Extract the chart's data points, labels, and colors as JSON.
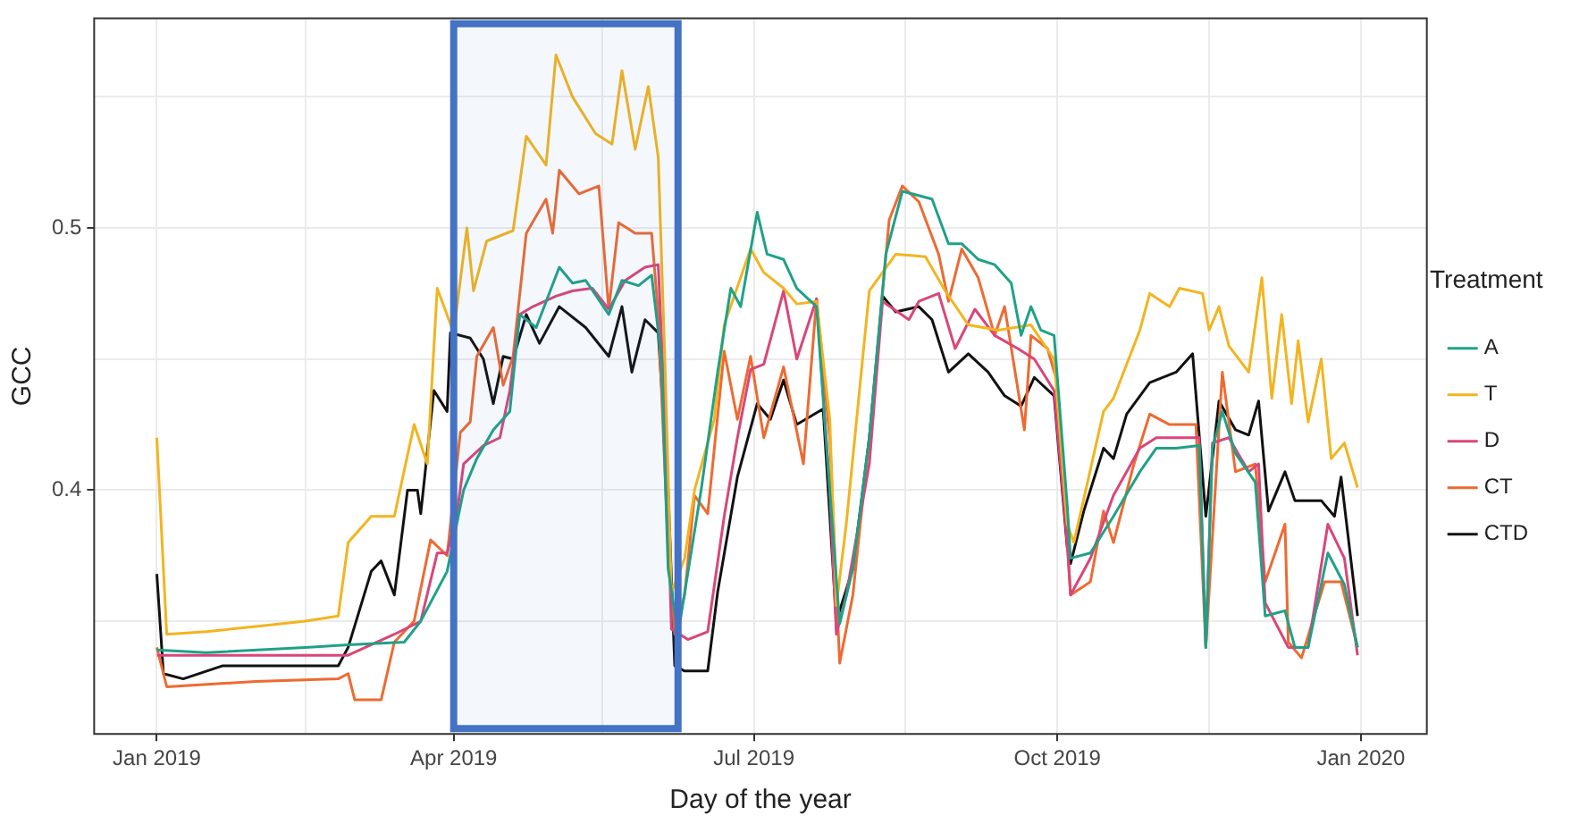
{
  "chart_data": {
    "type": "line",
    "xlabel": "Day of the year",
    "ylabel": "GCC",
    "legend_title": "Treatment",
    "legend": "right",
    "grid": true,
    "xlim": [
      "2018-12-13",
      "2020-01-21"
    ],
    "xticks": [
      {
        "value": "2019-01-01",
        "label": "Jan 2019"
      },
      {
        "value": "2019-02-15",
        "label": null
      },
      {
        "value": "2019-04-01",
        "label": "Apr 2019"
      },
      {
        "value": "2019-05-16",
        "label": null
      },
      {
        "value": "2019-07-01",
        "label": "Jul 2019"
      },
      {
        "value": "2019-08-16",
        "label": null
      },
      {
        "value": "2019-10-01",
        "label": "Oct 2019"
      },
      {
        "value": "2019-11-16",
        "label": null
      },
      {
        "value": "2020-01-01",
        "label": "Jan 2020"
      }
    ],
    "ylim": [
      0.307,
      0.58
    ],
    "yticks": [
      {
        "value": 0.35,
        "label": null
      },
      0.4,
      {
        "value": 0.45,
        "label": null
      },
      0.5,
      {
        "value": 0.55,
        "label": null
      }
    ],
    "bands": [
      {
        "axis": "x",
        "from": "2019-04-01",
        "to": "2019-06-08",
        "color": "#4472c4"
      }
    ],
    "series": [
      {
        "name": "A",
        "color": "#1fa187",
        "x": [
          "2019-01-01",
          "2019-01-16",
          "2019-02-15",
          "2019-02-28",
          "2019-03-17",
          "2019-03-22",
          "2019-03-30",
          "2019-04-04",
          "2019-04-08",
          "2019-04-13",
          "2019-04-18",
          "2019-04-21",
          "2019-04-26",
          "2019-05-03",
          "2019-05-07",
          "2019-05-11",
          "2019-05-18",
          "2019-05-22",
          "2019-05-27",
          "2019-05-31",
          "2019-06-03",
          "2019-06-05",
          "2019-06-08",
          "2019-06-15",
          "2019-06-20",
          "2019-06-24",
          "2019-06-27",
          "2019-07-02",
          "2019-07-05",
          "2019-07-10",
          "2019-07-14",
          "2019-07-20",
          "2019-07-24",
          "2019-07-27",
          "2019-07-31",
          "2019-08-05",
          "2019-08-10",
          "2019-08-15",
          "2019-08-24",
          "2019-08-29",
          "2019-09-02",
          "2019-09-07",
          "2019-09-12",
          "2019-09-17",
          "2019-09-20",
          "2019-09-23",
          "2019-09-26",
          "2019-09-30",
          "2019-10-04",
          "2019-10-05",
          "2019-10-11",
          "2019-10-18",
          "2019-10-26",
          "2019-10-31",
          "2019-11-06",
          "2019-11-13",
          "2019-11-15",
          "2019-11-17",
          "2019-11-20",
          "2019-11-24",
          "2019-11-30",
          "2019-12-03",
          "2019-12-09",
          "2019-12-12",
          "2019-12-16",
          "2019-12-22",
          "2019-12-27",
          "2019-12-31"
        ],
        "values": [
          0.339,
          0.338,
          0.34,
          0.341,
          0.342,
          0.35,
          0.369,
          0.4,
          0.412,
          0.423,
          0.43,
          0.467,
          0.462,
          0.485,
          0.479,
          0.48,
          0.467,
          0.48,
          0.478,
          0.482,
          0.45,
          0.37,
          0.345,
          0.4,
          0.445,
          0.477,
          0.47,
          0.506,
          0.49,
          0.488,
          0.477,
          0.47,
          0.4,
          0.349,
          0.37,
          0.42,
          0.49,
          0.514,
          0.511,
          0.494,
          0.494,
          0.488,
          0.486,
          0.479,
          0.459,
          0.47,
          0.461,
          0.459,
          0.394,
          0.374,
          0.376,
          0.39,
          0.407,
          0.416,
          0.416,
          0.417,
          0.34,
          0.416,
          0.43,
          0.414,
          0.403,
          0.352,
          0.354,
          0.34,
          0.34,
          0.376,
          0.364,
          0.34
        ]
      },
      {
        "name": "T",
        "color": "#f2b420",
        "x": [
          "2019-01-01",
          "2019-01-04",
          "2019-01-16",
          "2019-01-31",
          "2019-02-15",
          "2019-02-25",
          "2019-02-28",
          "2019-03-07",
          "2019-03-14",
          "2019-03-20",
          "2019-03-24",
          "2019-03-27",
          "2019-04-01",
          "2019-04-05",
          "2019-04-07",
          "2019-04-11",
          "2019-04-19",
          "2019-04-23",
          "2019-04-29",
          "2019-05-02",
          "2019-05-07",
          "2019-05-14",
          "2019-05-19",
          "2019-05-22",
          "2019-05-26",
          "2019-05-30",
          "2019-06-02",
          "2019-06-04",
          "2019-06-06",
          "2019-06-10",
          "2019-06-13",
          "2019-06-19",
          "2019-06-22",
          "2019-06-30",
          "2019-07-04",
          "2019-07-10",
          "2019-07-14",
          "2019-07-20",
          "2019-07-24",
          "2019-07-26",
          "2019-07-29",
          "2019-08-05",
          "2019-08-13",
          "2019-08-22",
          "2019-08-28",
          "2019-09-04",
          "2019-09-13",
          "2019-09-23",
          "2019-09-30",
          "2019-10-04",
          "2019-10-06",
          "2019-10-15",
          "2019-10-18",
          "2019-10-26",
          "2019-10-29",
          "2019-11-04",
          "2019-11-07",
          "2019-11-14",
          "2019-11-16",
          "2019-11-19",
          "2019-11-22",
          "2019-11-28",
          "2019-12-02",
          "2019-12-05",
          "2019-12-08",
          "2019-12-11",
          "2019-12-13",
          "2019-12-16",
          "2019-12-20",
          "2019-12-23",
          "2019-12-27",
          "2019-12-31"
        ],
        "values": [
          0.42,
          0.345,
          0.346,
          0.348,
          0.35,
          0.352,
          0.38,
          0.39,
          0.39,
          0.425,
          0.41,
          0.477,
          0.46,
          0.5,
          0.476,
          0.495,
          0.499,
          0.535,
          0.524,
          0.566,
          0.55,
          0.536,
          0.532,
          0.56,
          0.53,
          0.554,
          0.527,
          0.45,
          0.361,
          0.374,
          0.4,
          0.427,
          0.463,
          0.492,
          0.483,
          0.477,
          0.471,
          0.472,
          0.427,
          0.356,
          0.387,
          0.476,
          0.49,
          0.489,
          0.476,
          0.463,
          0.461,
          0.463,
          0.45,
          0.387,
          0.38,
          0.43,
          0.435,
          0.461,
          0.475,
          0.47,
          0.477,
          0.475,
          0.461,
          0.47,
          0.455,
          0.445,
          0.481,
          0.435,
          0.467,
          0.433,
          0.457,
          0.426,
          0.45,
          0.412,
          0.418,
          0.401
        ]
      },
      {
        "name": "D",
        "color": "#d9467a",
        "x": [
          "2019-01-01",
          "2019-01-31",
          "2019-02-25",
          "2019-02-28",
          "2019-03-07",
          "2019-03-14",
          "2019-03-22",
          "2019-03-27",
          "2019-03-30",
          "2019-04-02",
          "2019-04-04",
          "2019-04-10",
          "2019-04-15",
          "2019-04-18",
          "2019-04-21",
          "2019-04-25",
          "2019-05-02",
          "2019-05-07",
          "2019-05-13",
          "2019-05-18",
          "2019-05-23",
          "2019-05-29",
          "2019-06-02",
          "2019-06-04",
          "2019-06-06",
          "2019-06-11",
          "2019-06-17",
          "2019-06-22",
          "2019-06-26",
          "2019-06-30",
          "2019-07-04",
          "2019-07-10",
          "2019-07-14",
          "2019-07-20",
          "2019-07-24",
          "2019-07-26",
          "2019-07-29",
          "2019-08-05",
          "2019-08-09",
          "2019-08-17",
          "2019-08-20",
          "2019-08-26",
          "2019-08-31",
          "2019-09-06",
          "2019-09-12",
          "2019-09-19",
          "2019-09-24",
          "2019-09-30",
          "2019-10-04",
          "2019-10-05",
          "2019-10-11",
          "2019-10-18",
          "2019-10-26",
          "2019-10-31",
          "2019-11-09",
          "2019-11-13",
          "2019-11-15",
          "2019-11-17",
          "2019-11-22",
          "2019-11-28",
          "2019-12-01",
          "2019-12-03",
          "2019-12-10",
          "2019-12-16",
          "2019-12-22",
          "2019-12-27",
          "2019-12-31"
        ],
        "values": [
          0.337,
          0.337,
          0.337,
          0.337,
          0.341,
          0.345,
          0.35,
          0.376,
          0.376,
          0.391,
          0.41,
          0.417,
          0.42,
          0.438,
          0.467,
          0.47,
          0.474,
          0.476,
          0.477,
          0.469,
          0.48,
          0.485,
          0.486,
          0.43,
          0.347,
          0.343,
          0.346,
          0.39,
          0.42,
          0.446,
          0.448,
          0.476,
          0.45,
          0.473,
          0.4,
          0.345,
          0.36,
          0.41,
          0.472,
          0.465,
          0.472,
          0.475,
          0.454,
          0.469,
          0.459,
          0.454,
          0.45,
          0.438,
          0.38,
          0.36,
          0.374,
          0.398,
          0.416,
          0.42,
          0.42,
          0.42,
          0.34,
          0.418,
          0.42,
          0.407,
          0.41,
          0.357,
          0.34,
          0.34,
          0.387,
          0.374,
          0.337
        ]
      },
      {
        "name": "CT",
        "color": "#ee6a32",
        "x": [
          "2019-01-01",
          "2019-01-04",
          "2019-01-31",
          "2019-02-25",
          "2019-02-28",
          "2019-03-02",
          "2019-03-10",
          "2019-03-14",
          "2019-03-20",
          "2019-03-25",
          "2019-03-30",
          "2019-04-03",
          "2019-04-06",
          "2019-04-08",
          "2019-04-13",
          "2019-04-16",
          "2019-04-19",
          "2019-04-23",
          "2019-04-29",
          "2019-05-01",
          "2019-05-03",
          "2019-05-09",
          "2019-05-15",
          "2019-05-18",
          "2019-05-21",
          "2019-05-26",
          "2019-05-31",
          "2019-06-02",
          "2019-06-05",
          "2019-06-07",
          "2019-06-10",
          "2019-06-13",
          "2019-06-17",
          "2019-06-22",
          "2019-06-26",
          "2019-06-30",
          "2019-07-04",
          "2019-07-10",
          "2019-07-16",
          "2019-07-20",
          "2019-07-24",
          "2019-07-27",
          "2019-07-31",
          "2019-08-05",
          "2019-08-11",
          "2019-08-15",
          "2019-08-20",
          "2019-08-26",
          "2019-08-29",
          "2019-09-02",
          "2019-09-07",
          "2019-09-12",
          "2019-09-15",
          "2019-09-21",
          "2019-09-23",
          "2019-09-28",
          "2019-10-01",
          "2019-10-04",
          "2019-10-05",
          "2019-10-11",
          "2019-10-15",
          "2019-10-18",
          "2019-10-24",
          "2019-10-29",
          "2019-11-04",
          "2019-11-12",
          "2019-11-15",
          "2019-11-20",
          "2019-11-24",
          "2019-11-30",
          "2019-12-03",
          "2019-12-09",
          "2019-12-10",
          "2019-12-14",
          "2019-12-21",
          "2019-12-26",
          "2019-12-31"
        ],
        "values": [
          0.34,
          0.325,
          0.327,
          0.328,
          0.33,
          0.32,
          0.32,
          0.342,
          0.35,
          0.381,
          0.375,
          0.422,
          0.426,
          0.451,
          0.462,
          0.44,
          0.451,
          0.498,
          0.511,
          0.498,
          0.522,
          0.513,
          0.516,
          0.469,
          0.502,
          0.498,
          0.498,
          0.467,
          0.378,
          0.345,
          0.36,
          0.398,
          0.391,
          0.453,
          0.427,
          0.451,
          0.42,
          0.447,
          0.41,
          0.473,
          0.42,
          0.334,
          0.36,
          0.42,
          0.503,
          0.516,
          0.51,
          0.49,
          0.472,
          0.492,
          0.481,
          0.459,
          0.47,
          0.423,
          0.459,
          0.454,
          0.441,
          0.38,
          0.36,
          0.365,
          0.392,
          0.38,
          0.409,
          0.429,
          0.425,
          0.425,
          0.34,
          0.445,
          0.407,
          0.41,
          0.365,
          0.387,
          0.342,
          0.336,
          0.365,
          0.365,
          0.34
        ]
      },
      {
        "name": "CTD",
        "color": "#111111",
        "x": [
          "2019-01-01",
          "2019-01-03",
          "2019-01-09",
          "2019-01-21",
          "2019-02-25",
          "2019-02-28",
          "2019-03-07",
          "2019-03-10",
          "2019-03-14",
          "2019-03-18",
          "2019-03-21",
          "2019-03-22",
          "2019-03-26",
          "2019-03-30",
          "2019-03-31",
          "2019-04-06",
          "2019-04-10",
          "2019-04-13",
          "2019-04-16",
          "2019-04-19",
          "2019-04-23",
          "2019-04-27",
          "2019-05-03",
          "2019-05-11",
          "2019-05-18",
          "2019-05-22",
          "2019-05-25",
          "2019-05-29",
          "2019-06-02",
          "2019-06-05",
          "2019-06-07",
          "2019-06-10",
          "2019-06-17",
          "2019-06-20",
          "2019-06-26",
          "2019-07-02",
          "2019-07-06",
          "2019-07-10",
          "2019-07-14",
          "2019-07-22",
          "2019-07-26",
          "2019-07-31",
          "2019-08-05",
          "2019-08-09",
          "2019-08-13",
          "2019-08-20",
          "2019-08-24",
          "2019-08-29",
          "2019-09-04",
          "2019-09-10",
          "2019-09-15",
          "2019-09-20",
          "2019-09-24",
          "2019-09-30",
          "2019-10-04",
          "2019-10-05",
          "2019-10-09",
          "2019-10-15",
          "2019-10-18",
          "2019-10-22",
          "2019-10-29",
          "2019-11-06",
          "2019-11-11",
          "2019-11-15",
          "2019-11-19",
          "2019-11-24",
          "2019-11-28",
          "2019-12-01",
          "2019-12-04",
          "2019-12-09",
          "2019-12-12",
          "2019-12-20",
          "2019-12-24",
          "2019-12-26",
          "2019-12-31"
        ],
        "values": [
          0.368,
          0.33,
          0.328,
          0.333,
          0.333,
          0.34,
          0.369,
          0.373,
          0.36,
          0.4,
          0.4,
          0.391,
          0.438,
          0.43,
          0.46,
          0.458,
          0.45,
          0.433,
          0.451,
          0.45,
          0.467,
          0.456,
          0.47,
          0.462,
          0.451,
          0.47,
          0.445,
          0.465,
          0.46,
          0.4,
          0.333,
          0.331,
          0.331,
          0.361,
          0.405,
          0.433,
          0.427,
          0.442,
          0.425,
          0.431,
          0.35,
          0.37,
          0.42,
          0.474,
          0.468,
          0.47,
          0.465,
          0.445,
          0.452,
          0.445,
          0.436,
          0.432,
          0.443,
          0.436,
          0.378,
          0.372,
          0.392,
          0.416,
          0.412,
          0.429,
          0.441,
          0.445,
          0.452,
          0.39,
          0.434,
          0.423,
          0.421,
          0.434,
          0.392,
          0.407,
          0.396,
          0.396,
          0.39,
          0.405,
          0.352
        ]
      }
    ]
  }
}
